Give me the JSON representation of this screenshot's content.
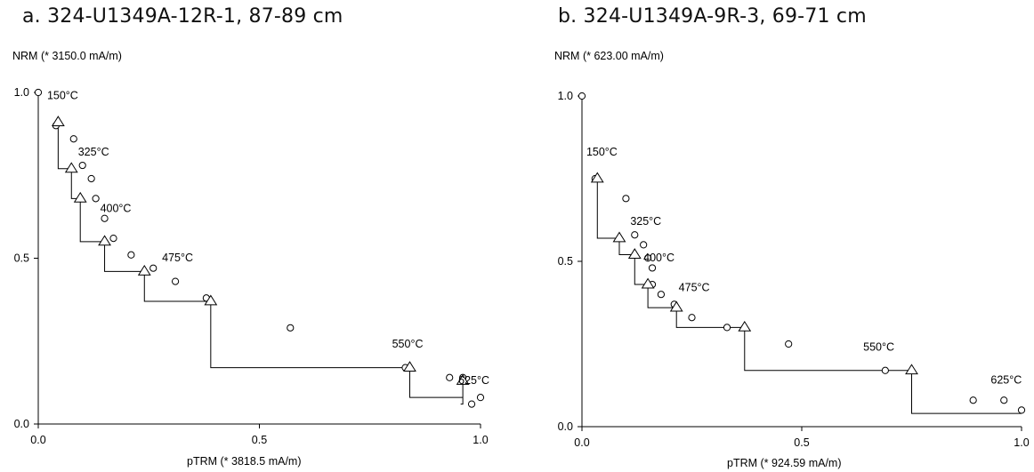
{
  "chart_data": [
    {
      "type": "scatter",
      "title": "a. 324-U1349A-12R-1, 87-89 cm",
      "ylabel": "NRM (* 3150.0 mA/m)",
      "xlabel": "pTRM (* 3818.5 mA/m)",
      "xlim": [
        0,
        1.0
      ],
      "ylim": [
        0,
        1.0
      ],
      "xticks": [
        "0.0",
        "0.5",
        "1.0"
      ],
      "yticks": [
        "0.0",
        "0.5",
        "1.0"
      ],
      "series": [
        {
          "marker": "circle",
          "points": [
            [
              0.0,
              1.0
            ],
            [
              0.04,
              0.9
            ],
            [
              0.08,
              0.86
            ],
            [
              0.1,
              0.78
            ],
            [
              0.12,
              0.74
            ],
            [
              0.13,
              0.68
            ],
            [
              0.15,
              0.62
            ],
            [
              0.17,
              0.56
            ],
            [
              0.21,
              0.51
            ],
            [
              0.26,
              0.47
            ],
            [
              0.31,
              0.43
            ],
            [
              0.38,
              0.38
            ],
            [
              0.57,
              0.29
            ],
            [
              0.83,
              0.17
            ],
            [
              0.93,
              0.14
            ],
            [
              0.96,
              0.14
            ],
            [
              1.0,
              0.08
            ],
            [
              0.98,
              0.06
            ]
          ]
        },
        {
          "marker": "triangle",
          "points": [
            [
              0.045,
              0.91
            ],
            [
              0.075,
              0.77
            ],
            [
              0.095,
              0.68
            ],
            [
              0.15,
              0.55
            ],
            [
              0.24,
              0.46
            ],
            [
              0.39,
              0.37
            ],
            [
              0.84,
              0.17
            ],
            [
              0.96,
              0.13
            ]
          ]
        }
      ],
      "checks": [
        {
          "from": [
            0.045,
            0.91
          ],
          "to": [
            0.075,
            0.77
          ]
        },
        {
          "from": [
            0.075,
            0.77
          ],
          "to": [
            0.095,
            0.68
          ]
        },
        {
          "from": [
            0.095,
            0.68
          ],
          "to": [
            0.15,
            0.55
          ]
        },
        {
          "from": [
            0.15,
            0.55
          ],
          "to": [
            0.24,
            0.46
          ]
        },
        {
          "from": [
            0.24,
            0.46
          ],
          "to": [
            0.39,
            0.37
          ]
        },
        {
          "from": [
            0.39,
            0.37
          ],
          "to": [
            0.84,
            0.17
          ]
        },
        {
          "from": [
            0.84,
            0.17
          ],
          "to": [
            0.96,
            0.08
          ]
        },
        {
          "from": [
            0.96,
            0.13
          ],
          "to": [
            0.955,
            0.06
          ]
        }
      ],
      "annotations": [
        {
          "text": "150°C",
          "x": 0.02,
          "y": 0.98
        },
        {
          "text": "325°C",
          "x": 0.09,
          "y": 0.81
        },
        {
          "text": "400°C",
          "x": 0.14,
          "y": 0.64
        },
        {
          "text": "475°C",
          "x": 0.28,
          "y": 0.49
        },
        {
          "text": "550°C",
          "x": 0.8,
          "y": 0.23
        },
        {
          "text": "625°C",
          "x": 0.95,
          "y": 0.12
        }
      ]
    },
    {
      "type": "scatter",
      "title": "b. 324-U1349A-9R-3, 69-71 cm",
      "ylabel": "NRM (* 623.00 mA/m)",
      "xlabel": "pTRM (* 924.59 mA/m)",
      "xlim": [
        0,
        1.0
      ],
      "ylim": [
        0,
        1.0
      ],
      "xticks": [
        "0.0",
        "0.5",
        "1.0"
      ],
      "yticks": [
        "0.0",
        "0.5",
        "1.0"
      ],
      "series": [
        {
          "marker": "circle",
          "points": [
            [
              0.0,
              1.0
            ],
            [
              0.03,
              0.75
            ],
            [
              0.1,
              0.69
            ],
            [
              0.12,
              0.58
            ],
            [
              0.14,
              0.55
            ],
            [
              0.15,
              0.51
            ],
            [
              0.16,
              0.48
            ],
            [
              0.16,
              0.43
            ],
            [
              0.18,
              0.4
            ],
            [
              0.21,
              0.37
            ],
            [
              0.25,
              0.33
            ],
            [
              0.33,
              0.3
            ],
            [
              0.47,
              0.25
            ],
            [
              0.69,
              0.17
            ],
            [
              0.89,
              0.08
            ],
            [
              0.96,
              0.08
            ],
            [
              1.0,
              0.05
            ]
          ]
        },
        {
          "marker": "triangle",
          "points": [
            [
              0.035,
              0.75
            ],
            [
              0.085,
              0.57
            ],
            [
              0.12,
              0.52
            ],
            [
              0.15,
              0.43
            ],
            [
              0.215,
              0.36
            ],
            [
              0.37,
              0.3
            ],
            [
              0.75,
              0.17
            ]
          ]
        }
      ],
      "checks": [
        {
          "from": [
            0.035,
            0.75
          ],
          "to": [
            0.085,
            0.57
          ]
        },
        {
          "from": [
            0.085,
            0.57
          ],
          "to": [
            0.12,
            0.52
          ]
        },
        {
          "from": [
            0.12,
            0.52
          ],
          "to": [
            0.15,
            0.43
          ]
        },
        {
          "from": [
            0.15,
            0.43
          ],
          "to": [
            0.215,
            0.36
          ]
        },
        {
          "from": [
            0.215,
            0.36
          ],
          "to": [
            0.37,
            0.3
          ]
        },
        {
          "from": [
            0.37,
            0.3
          ],
          "to": [
            0.75,
            0.17
          ]
        },
        {
          "from": [
            0.75,
            0.17
          ],
          "to": [
            1.0,
            0.04
          ]
        }
      ],
      "annotations": [
        {
          "text": "150°C",
          "x": 0.01,
          "y": 0.82
        },
        {
          "text": "325°C",
          "x": 0.11,
          "y": 0.61
        },
        {
          "text": "400°C",
          "x": 0.14,
          "y": 0.5
        },
        {
          "text": "475°C",
          "x": 0.22,
          "y": 0.41
        },
        {
          "text": "550°C",
          "x": 0.64,
          "y": 0.23
        },
        {
          "text": "625°C",
          "x": 0.93,
          "y": 0.13
        }
      ]
    }
  ]
}
